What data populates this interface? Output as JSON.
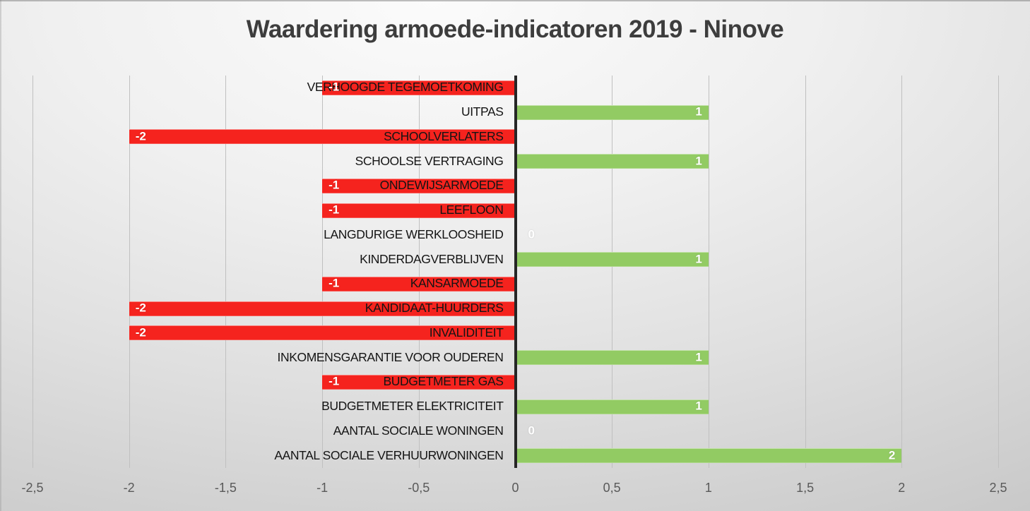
{
  "title": "Waardering armoede-indicatoren 2019 - Ninove",
  "chart_data": {
    "type": "bar",
    "orientation": "horizontal",
    "title": "Waardering armoede-indicatoren 2019 - Ninove",
    "categories": [
      "VERHOOGDE TEGEMOETKOMING",
      "UITPAS",
      "SCHOOLVERLATERS",
      "SCHOOLSE VERTRAGING",
      "ONDEWIJSARMOEDE",
      "LEEFLOON",
      "LANGDURIGE WERKLOOSHEID",
      "KINDERDAGVERBLIJVEN",
      "KANSARMOEDE",
      "KANDIDAAT-HUURDERS",
      "INVALIDITEIT",
      "INKOMENSGARANTIE VOOR OUDEREN",
      "BUDGETMETER GAS",
      "BUDGETMETER ELEKTRICITEIT",
      "AANTAL SOCIALE WONINGEN",
      "AANTAL SOCIALE VERHUURWONINGEN"
    ],
    "values": [
      -1,
      1,
      -2,
      1,
      -1,
      -1,
      0,
      1,
      -1,
      -2,
      -2,
      1,
      -1,
      1,
      0,
      2
    ],
    "xlim": [
      -2.5,
      2.5
    ],
    "x_tick_values": [
      -2.5,
      -2,
      -1.5,
      -1,
      -0.5,
      0,
      0.5,
      1,
      1.5,
      2,
      2.5
    ],
    "x_tick_labels": [
      "-2,5",
      "-2",
      "-1,5",
      "-1",
      "-0,5",
      "0",
      "0,5",
      "1",
      "1,5",
      "2",
      "2,5"
    ],
    "grid": "vertical",
    "legend": "none",
    "colors": {
      "negative_bar": "#f5231e",
      "positive_bar": "#92cb63",
      "value_label": "#ffffff",
      "category_label": "#141414",
      "tick_label": "#595959",
      "gridline": "#c0c0c0",
      "zero_axis": "#262626",
      "title": "#3d3d3d"
    }
  }
}
